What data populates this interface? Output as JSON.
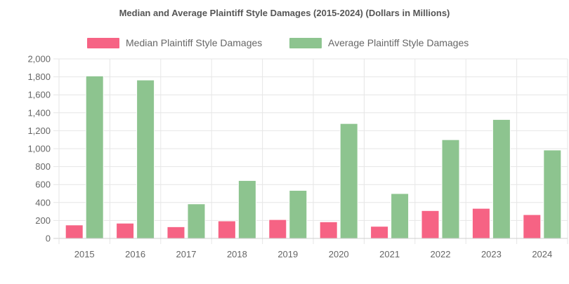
{
  "chart_data": {
    "type": "bar",
    "title": "Median and Average Plaintiff Style Damages (2015-2024) (Dollars in Millions)",
    "categories": [
      "2015",
      "2016",
      "2017",
      "2018",
      "2019",
      "2020",
      "2021",
      "2022",
      "2023",
      "2024"
    ],
    "series": [
      {
        "name": "Median Plaintiff Style Damages",
        "color": "#f66384",
        "values": [
          150,
          170,
          130,
          195,
          210,
          185,
          135,
          310,
          335,
          265
        ]
      },
      {
        "name": "Average Plaintiff Style Damages",
        "color": "#8dc48f",
        "values": [
          1810,
          1765,
          385,
          645,
          535,
          1280,
          500,
          1100,
          1325,
          985
        ]
      }
    ],
    "ylim": [
      0,
      2000
    ],
    "y_ticks": [
      "0",
      "200",
      "400",
      "600",
      "800",
      "1,000",
      "1,200",
      "1,400",
      "1,600",
      "1,800",
      "2,000"
    ],
    "grid": true,
    "legend_position": "top"
  }
}
